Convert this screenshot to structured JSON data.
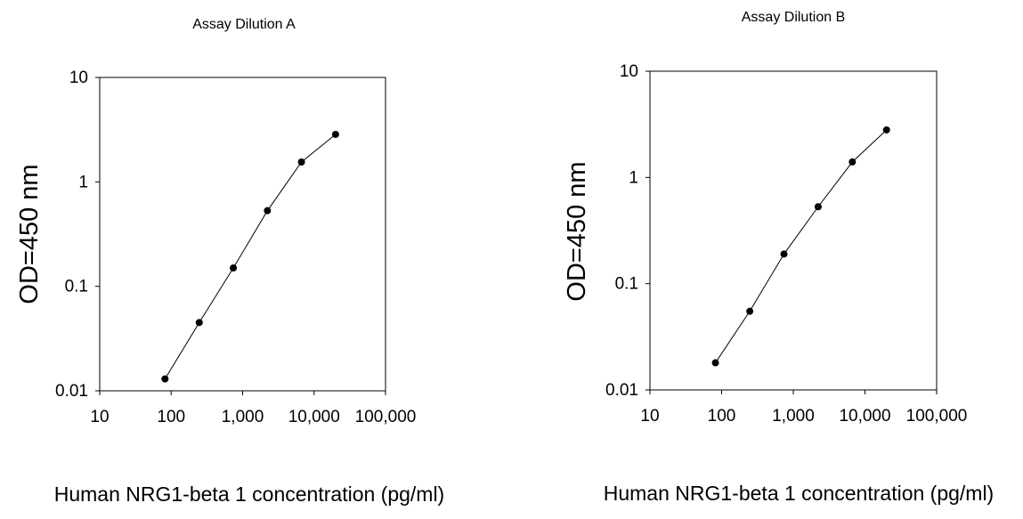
{
  "chart_data": [
    {
      "type": "scatter",
      "title": "Assay Dilution A",
      "xlabel": "Human NRG1-beta 1 concentration (pg/ml)",
      "ylabel": "OD=450 nm",
      "x_scale": "log",
      "y_scale": "log",
      "xlim": [
        10,
        100000
      ],
      "ylim": [
        0.01,
        10
      ],
      "x_ticks": [
        10,
        100,
        1000,
        10000,
        100000
      ],
      "x_tick_labels": [
        "10",
        "100",
        "1,000",
        "10,000",
        "100,000"
      ],
      "y_ticks": [
        0.01,
        0.1,
        1,
        10
      ],
      "y_tick_labels": [
        "0.01",
        "0.1",
        "1",
        "10"
      ],
      "grid": false,
      "connect_points": true,
      "series": [
        {
          "x": [
            82,
            247,
            741,
            2222,
            6667,
            20000
          ],
          "y": [
            0.013,
            0.045,
            0.15,
            0.53,
            1.55,
            2.85
          ]
        }
      ]
    },
    {
      "type": "scatter",
      "title": "Assay Dilution B",
      "xlabel": "Human NRG1-beta 1 concentration (pg/ml)",
      "ylabel": "OD=450 nm",
      "x_scale": "log",
      "y_scale": "log",
      "xlim": [
        10,
        100000
      ],
      "ylim": [
        0.01,
        10
      ],
      "x_ticks": [
        10,
        100,
        1000,
        10000,
        100000
      ],
      "x_tick_labels": [
        "10",
        "100",
        "1,000",
        "10,000",
        "100,000"
      ],
      "y_ticks": [
        0.01,
        0.1,
        1,
        10
      ],
      "y_tick_labels": [
        "0.01",
        "0.1",
        "1",
        "10"
      ],
      "grid": false,
      "connect_points": true,
      "series": [
        {
          "x": [
            82,
            247,
            741,
            2222,
            6667,
            20000
          ],
          "y": [
            0.018,
            0.055,
            0.19,
            0.53,
            1.4,
            2.8
          ]
        }
      ]
    }
  ]
}
